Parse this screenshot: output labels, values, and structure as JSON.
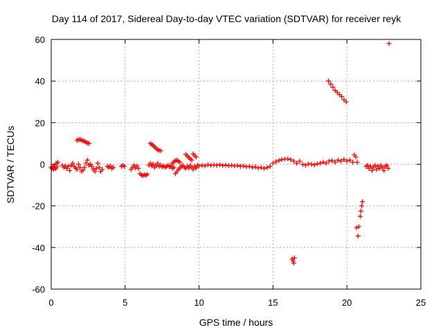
{
  "chart_data": {
    "type": "scatter",
    "title": "Day 114 of 2017, Sidereal Day-to-day VTEC variation (SDTVAR) for receiver reyk",
    "xlabel": "GPS time / hours",
    "ylabel": "SDTVAR / TECUs",
    "xlim": [
      0,
      25
    ],
    "ylim": [
      -60,
      60
    ],
    "xticks": [
      0,
      5,
      10,
      15,
      20,
      25
    ],
    "yticks": [
      -60,
      -40,
      -20,
      0,
      20,
      40,
      60
    ],
    "xtick_labels": [
      "0",
      "5",
      "10",
      "15",
      "20",
      "25"
    ],
    "ytick_labels": [
      "-60",
      "-40",
      "-20",
      "0",
      "20",
      "40",
      "60"
    ],
    "grid": true,
    "marker": "plus",
    "color": "#ff0000",
    "series": [
      {
        "name": "SDTVAR",
        "points": [
          [
            0.0,
            -1.5
          ],
          [
            0.05,
            -2.0
          ],
          [
            0.1,
            -1.0
          ],
          [
            0.15,
            -2.5
          ],
          [
            0.2,
            -1.8
          ],
          [
            0.25,
            -0.5
          ],
          [
            0.3,
            -2.2
          ],
          [
            0.35,
            0.5
          ],
          [
            0.4,
            -1.2
          ],
          [
            0.45,
            1.0
          ],
          [
            0.75,
            -0.5
          ],
          [
            0.85,
            -1.5
          ],
          [
            0.95,
            -0.8
          ],
          [
            1.05,
            -2.0
          ],
          [
            1.15,
            -1.0
          ],
          [
            1.25,
            -3.0
          ],
          [
            1.35,
            -0.5
          ],
          [
            1.45,
            0.5
          ],
          [
            1.55,
            -1.0
          ],
          [
            1.65,
            -1.8
          ],
          [
            1.75,
            -2.5
          ],
          [
            1.85,
            0.0
          ],
          [
            1.95,
            -1.5
          ],
          [
            2.05,
            -3.5
          ],
          [
            2.15,
            -2.8
          ],
          [
            2.25,
            -1.5
          ],
          [
            2.35,
            0.5
          ],
          [
            2.45,
            2.0
          ],
          [
            2.55,
            -0.5
          ],
          [
            2.65,
            0.0
          ],
          [
            2.75,
            -1.0
          ],
          [
            2.85,
            -2.5
          ],
          [
            2.95,
            -3.5
          ],
          [
            3.05,
            -2.0
          ],
          [
            3.15,
            0.5
          ],
          [
            3.25,
            -1.5
          ],
          [
            3.35,
            -3.5
          ],
          [
            3.45,
            -2.5
          ],
          [
            1.75,
            11.5
          ],
          [
            1.85,
            11.8
          ],
          [
            1.95,
            12.0
          ],
          [
            2.05,
            11.6
          ],
          [
            2.15,
            11.3
          ],
          [
            2.25,
            11.0
          ],
          [
            2.35,
            10.6
          ],
          [
            2.45,
            10.2
          ],
          [
            2.55,
            10.0
          ],
          [
            3.8,
            -1.0
          ],
          [
            3.9,
            -1.5
          ],
          [
            4.0,
            -0.8
          ],
          [
            4.1,
            -2.0
          ],
          [
            4.2,
            -1.5
          ],
          [
            4.75,
            -1.0
          ],
          [
            4.85,
            -0.5
          ],
          [
            4.95,
            -1.0
          ],
          [
            5.4,
            -2.5
          ],
          [
            5.5,
            -1.5
          ],
          [
            5.6,
            -0.5
          ],
          [
            5.7,
            -1.8
          ],
          [
            5.8,
            -0.8
          ],
          [
            5.9,
            -2.0
          ],
          [
            6.0,
            -4.5
          ],
          [
            6.1,
            -5.2
          ],
          [
            6.2,
            -5.5
          ],
          [
            6.3,
            -5.0
          ],
          [
            6.4,
            -5.3
          ],
          [
            6.5,
            -4.8
          ],
          [
            6.6,
            -0.5
          ],
          [
            6.7,
            0.5
          ],
          [
            6.8,
            -0.8
          ],
          [
            6.9,
            0.0
          ],
          [
            7.0,
            -1.5
          ],
          [
            7.1,
            -0.5
          ],
          [
            7.2,
            0.5
          ],
          [
            7.3,
            -1.0
          ],
          [
            7.4,
            -0.5
          ],
          [
            7.5,
            -1.2
          ],
          [
            7.6,
            -0.8
          ],
          [
            7.7,
            -1.5
          ],
          [
            7.8,
            -1.0
          ],
          [
            7.9,
            -0.5
          ],
          [
            8.0,
            -1.3
          ],
          [
            8.1,
            -0.8
          ],
          [
            8.2,
            -2.0
          ],
          [
            8.3,
            -1.5
          ],
          [
            8.4,
            -4.5
          ],
          [
            8.5,
            -3.5
          ],
          [
            8.6,
            -2.5
          ],
          [
            8.7,
            -1.8
          ],
          [
            8.8,
            -1.0
          ],
          [
            8.9,
            -0.5
          ],
          [
            9.0,
            -1.5
          ],
          [
            9.1,
            -2.0
          ],
          [
            9.2,
            -1.0
          ],
          [
            9.3,
            -1.8
          ],
          [
            9.4,
            -0.5
          ],
          [
            9.5,
            -1.5
          ],
          [
            9.6,
            -2.5
          ],
          [
            9.7,
            -1.0
          ],
          [
            9.8,
            -1.8
          ],
          [
            9.9,
            -0.5
          ],
          [
            6.7,
            10.0
          ],
          [
            6.8,
            9.5
          ],
          [
            6.9,
            9.0
          ],
          [
            7.0,
            8.3
          ],
          [
            7.1,
            7.6
          ],
          [
            7.2,
            7.0
          ],
          [
            7.3,
            6.7
          ],
          [
            7.4,
            6.5
          ],
          [
            8.2,
            0.5
          ],
          [
            8.3,
            1.2
          ],
          [
            8.4,
            1.8
          ],
          [
            8.5,
            2.0
          ],
          [
            8.6,
            1.5
          ],
          [
            8.7,
            1.0
          ],
          [
            9.1,
            4.8
          ],
          [
            9.2,
            4.0
          ],
          [
            9.3,
            3.3
          ],
          [
            9.4,
            2.6
          ],
          [
            9.5,
            2.0
          ],
          [
            9.6,
            5.0
          ],
          [
            9.7,
            4.2
          ],
          [
            9.8,
            3.5
          ],
          [
            10.0,
            -0.8
          ],
          [
            10.2,
            -0.5
          ],
          [
            10.4,
            -0.8
          ],
          [
            10.6,
            -0.2
          ],
          [
            10.8,
            -0.5
          ],
          [
            11.0,
            -0.3
          ],
          [
            11.2,
            -0.5
          ],
          [
            11.4,
            -0.2
          ],
          [
            11.6,
            -0.6
          ],
          [
            11.8,
            -0.4
          ],
          [
            12.0,
            -0.7
          ],
          [
            12.2,
            -0.5
          ],
          [
            12.4,
            -0.8
          ],
          [
            12.6,
            -0.6
          ],
          [
            12.8,
            -1.0
          ],
          [
            13.0,
            -0.8
          ],
          [
            13.2,
            -1.2
          ],
          [
            13.4,
            -1.0
          ],
          [
            13.6,
            -1.5
          ],
          [
            13.8,
            -1.2
          ],
          [
            14.0,
            -1.8
          ],
          [
            14.2,
            -1.5
          ],
          [
            14.4,
            -2.0
          ],
          [
            14.6,
            -1.6
          ],
          [
            14.8,
            -1.0
          ],
          [
            15.0,
            0.5
          ],
          [
            15.2,
            1.2
          ],
          [
            15.4,
            1.8
          ],
          [
            15.6,
            2.3
          ],
          [
            15.8,
            2.5
          ],
          [
            16.0,
            2.6
          ],
          [
            16.2,
            2.2
          ],
          [
            16.4,
            1.5
          ],
          [
            16.6,
            0.5
          ],
          [
            16.8,
            1.5
          ],
          [
            17.0,
            0.0
          ],
          [
            17.2,
            -0.5
          ],
          [
            17.4,
            0.2
          ],
          [
            17.6,
            0.0
          ],
          [
            17.8,
            -0.3
          ],
          [
            18.0,
            0.2
          ],
          [
            18.2,
            0.5
          ],
          [
            18.4,
            1.0
          ],
          [
            18.6,
            0.5
          ],
          [
            18.8,
            1.5
          ],
          [
            19.0,
            1.8
          ],
          [
            19.2,
            1.0
          ],
          [
            19.4,
            2.0
          ],
          [
            19.6,
            1.5
          ],
          [
            19.8,
            2.3
          ],
          [
            20.0,
            1.5
          ],
          [
            20.2,
            2.0
          ],
          [
            20.4,
            1.0
          ],
          [
            20.5,
            4.5
          ],
          [
            20.6,
            3.5
          ],
          [
            20.7,
            1.0
          ],
          [
            16.3,
            -45.5
          ],
          [
            16.35,
            -46.5
          ],
          [
            16.4,
            -47.5
          ],
          [
            16.45,
            -45.0
          ],
          [
            18.75,
            40.0
          ],
          [
            18.9,
            38.5
          ],
          [
            19.05,
            37.0
          ],
          [
            19.2,
            35.5
          ],
          [
            19.35,
            34.5
          ],
          [
            19.5,
            33.5
          ],
          [
            19.65,
            32.5
          ],
          [
            19.8,
            31.0
          ],
          [
            19.95,
            30.0
          ],
          [
            20.65,
            -30.5
          ],
          [
            20.75,
            -34.5
          ],
          [
            20.8,
            -30.0
          ],
          [
            20.9,
            -25.0
          ],
          [
            20.95,
            -22.5
          ],
          [
            21.0,
            -20.0
          ],
          [
            21.05,
            -18.0
          ],
          [
            21.3,
            -1.0
          ],
          [
            21.4,
            -0.5
          ],
          [
            21.5,
            -2.0
          ],
          [
            21.6,
            -1.0
          ],
          [
            21.7,
            -3.0
          ],
          [
            21.8,
            -1.5
          ],
          [
            21.9,
            -0.5
          ],
          [
            22.0,
            -2.5
          ],
          [
            22.1,
            -1.0
          ],
          [
            22.2,
            -2.0
          ],
          [
            22.3,
            -0.5
          ],
          [
            22.4,
            -1.5
          ],
          [
            22.5,
            -3.0
          ],
          [
            22.6,
            -1.0
          ],
          [
            22.7,
            -0.5
          ],
          [
            22.8,
            -2.0
          ],
          [
            22.85,
            58.0
          ]
        ]
      }
    ]
  }
}
